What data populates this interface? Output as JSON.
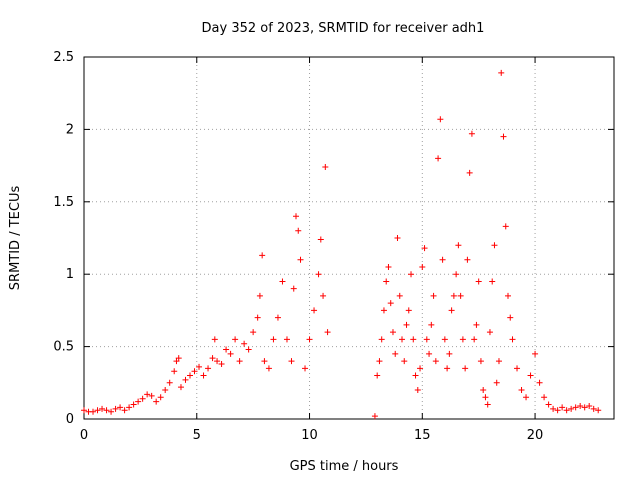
{
  "chart_data": {
    "type": "scatter",
    "title": "Day 352 of 2023, SRMTID for receiver adh1",
    "xlabel": "GPS time / hours",
    "ylabel": "SRMTID / TECUs",
    "xlim": [
      0,
      23.5
    ],
    "ylim": [
      0,
      2.5
    ],
    "xticks": [
      0,
      5,
      10,
      15,
      20
    ],
    "xtick_labels": [
      "0",
      "5",
      "10",
      "15",
      "20"
    ],
    "yticks": [
      0,
      0.5,
      1,
      1.5,
      2,
      2.5
    ],
    "ytick_labels": [
      "0",
      "0.5",
      "1",
      "1.5",
      "2",
      "2.5"
    ],
    "grid": true,
    "marker": "+",
    "color": "#ff0000",
    "series": [
      {
        "name": "SRMTID",
        "x": [
          0.0,
          0.2,
          0.4,
          0.6,
          0.8,
          1.0,
          1.2,
          1.4,
          1.6,
          1.8,
          2.0,
          2.2,
          2.4,
          2.6,
          2.8,
          3.0,
          3.2,
          3.4,
          3.6,
          3.8,
          4.0,
          4.1,
          4.2,
          4.3,
          4.5,
          4.7,
          4.9,
          5.1,
          5.3,
          5.5,
          5.7,
          5.8,
          5.9,
          6.1,
          6.3,
          6.5,
          6.7,
          6.9,
          7.1,
          7.3,
          7.5,
          7.7,
          7.8,
          7.9,
          8.0,
          8.2,
          8.4,
          8.6,
          8.8,
          9.0,
          9.2,
          9.3,
          9.4,
          9.5,
          9.6,
          9.8,
          10.0,
          10.2,
          10.4,
          10.5,
          10.6,
          10.7,
          10.8,
          12.9,
          13.0,
          13.1,
          13.2,
          13.3,
          13.4,
          13.5,
          13.6,
          13.7,
          13.8,
          13.9,
          14.0,
          14.1,
          14.2,
          14.3,
          14.4,
          14.5,
          14.6,
          14.7,
          14.8,
          14.9,
          15.0,
          15.1,
          15.2,
          15.3,
          15.4,
          15.5,
          15.6,
          15.7,
          15.8,
          15.9,
          16.0,
          16.1,
          16.2,
          16.3,
          16.4,
          16.5,
          16.6,
          16.7,
          16.8,
          16.9,
          17.0,
          17.1,
          17.2,
          17.3,
          17.4,
          17.5,
          17.6,
          17.7,
          17.8,
          17.9,
          18.0,
          18.1,
          18.2,
          18.3,
          18.4,
          18.5,
          18.6,
          18.7,
          18.8,
          18.9,
          19.0,
          19.2,
          19.4,
          19.6,
          19.8,
          20.0,
          20.2,
          20.4,
          20.6,
          20.8,
          21.0,
          21.2,
          21.4,
          21.6,
          21.8,
          22.0,
          22.2,
          22.4,
          22.6,
          22.8
        ],
        "y": [
          0.06,
          0.05,
          0.05,
          0.06,
          0.07,
          0.06,
          0.05,
          0.07,
          0.08,
          0.06,
          0.08,
          0.1,
          0.12,
          0.14,
          0.17,
          0.16,
          0.12,
          0.15,
          0.2,
          0.25,
          0.33,
          0.4,
          0.42,
          0.22,
          0.27,
          0.3,
          0.33,
          0.36,
          0.3,
          0.35,
          0.42,
          0.55,
          0.4,
          0.38,
          0.48,
          0.45,
          0.55,
          0.4,
          0.52,
          0.48,
          0.6,
          0.7,
          0.85,
          1.13,
          0.4,
          0.35,
          0.55,
          0.7,
          0.95,
          0.55,
          0.4,
          0.9,
          1.4,
          1.3,
          1.1,
          0.35,
          0.55,
          0.75,
          1.0,
          1.24,
          0.85,
          1.74,
          0.6,
          0.02,
          0.3,
          0.4,
          0.55,
          0.75,
          0.95,
          1.05,
          0.8,
          0.6,
          0.45,
          1.25,
          0.85,
          0.55,
          0.4,
          0.65,
          0.75,
          1.0,
          0.55,
          0.3,
          0.2,
          0.35,
          1.05,
          1.18,
          0.55,
          0.45,
          0.65,
          0.85,
          0.4,
          1.8,
          2.07,
          1.1,
          0.55,
          0.35,
          0.45,
          0.75,
          0.85,
          1.0,
          1.2,
          0.85,
          0.55,
          0.35,
          1.1,
          1.7,
          1.97,
          0.55,
          0.65,
          0.95,
          0.4,
          0.2,
          0.15,
          0.1,
          0.6,
          0.95,
          1.2,
          0.25,
          0.4,
          2.39,
          1.95,
          1.33,
          0.85,
          0.7,
          0.55,
          0.35,
          0.2,
          0.15,
          0.3,
          0.45,
          0.25,
          0.15,
          0.1,
          0.07,
          0.06,
          0.08,
          0.06,
          0.07,
          0.08,
          0.09,
          0.08,
          0.09,
          0.07,
          0.06
        ]
      }
    ]
  }
}
